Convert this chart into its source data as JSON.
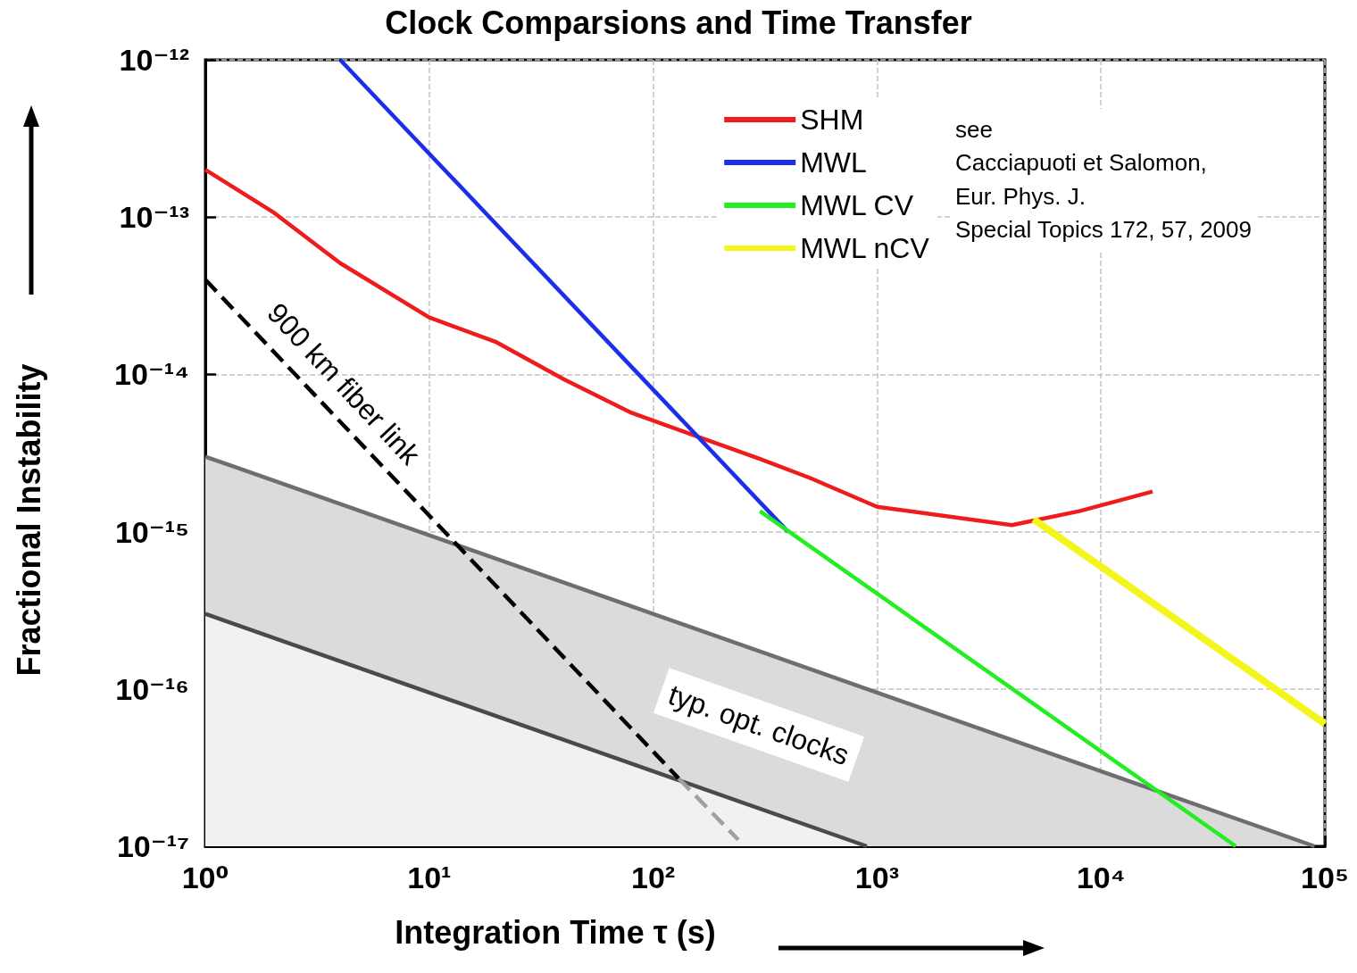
{
  "chart_data": {
    "type": "line",
    "title": "Clock Comparsions and Time Transfer",
    "xlabel": "Integration Time τ (s)",
    "ylabel": "Fractional Instability",
    "log": "xy",
    "grid": true,
    "legend": "top right",
    "marker": "none",
    "line_style": "solid",
    "xlim": [
      1,
      100000
    ],
    "xticks": [
      {
        "value": 1,
        "label": "10⁰"
      },
      {
        "value": 10,
        "label": "10¹"
      },
      {
        "value": 100,
        "label": "10²"
      },
      {
        "value": 1000,
        "label": "10³"
      },
      {
        "value": 10000,
        "label": "10⁴"
      },
      {
        "value": 100000,
        "label": "10⁵"
      }
    ],
    "ylim": [
      1e-17,
      1e-12
    ],
    "yticks": [
      {
        "value": 1e-17,
        "label": "10⁻¹⁷"
      },
      {
        "value": 1e-16,
        "label": "10⁻¹⁶"
      },
      {
        "value": 1e-15,
        "label": "10⁻¹⁵"
      },
      {
        "value": 1e-14,
        "label": "10⁻¹⁴"
      },
      {
        "value": 1e-13,
        "label": "10⁻¹³"
      },
      {
        "value": 1e-12,
        "label": "10⁻¹²"
      }
    ],
    "series": [
      {
        "type": "area",
        "color": "#6e6e6e",
        "x": [
          1,
          90000
        ],
        "values": [
          3e-15,
          1e-17
        ]
      },
      {
        "type": "area",
        "color": "#4a4a4a",
        "x": [
          1,
          900
        ],
        "values": [
          3e-16,
          1e-17
        ]
      },
      {
        "color": "#000000",
        "line_style": "dashed",
        "x": [
          1,
          130
        ],
        "values": [
          4e-14,
          2.7e-17
        ]
      },
      {
        "color": "#a0a0a0",
        "line_style": "dashed",
        "x": [
          130,
          240
        ],
        "values": [
          2.7e-17,
          1.1e-17
        ]
      },
      {
        "name": "SHM",
        "color": "#ee1c1c",
        "x": [
          1,
          2,
          4,
          10,
          20,
          40,
          80,
          160,
          300,
          500,
          1000,
          4000,
          8000,
          17000
        ],
        "values": [
          2e-13,
          1.08e-13,
          5.1e-14,
          2.3e-14,
          1.6e-14,
          9.3e-15,
          5.7e-15,
          4e-15,
          2.9e-15,
          2.2e-15,
          1.44e-15,
          1.1e-15,
          1.35e-15,
          1.8e-15
        ]
      },
      {
        "name": "MWL",
        "color": "#1c2ee8",
        "x": [
          4,
          400
        ],
        "values": [
          1e-12,
          1e-15
        ]
      },
      {
        "name": "MWL CV",
        "color": "#22ee22",
        "x": [
          300,
          40000
        ],
        "values": [
          1.35e-15,
          1e-17
        ]
      },
      {
        "name": "MWL nCV",
        "color": "#f5f51e",
        "x": [
          5000,
          100000
        ],
        "values": [
          1.2e-15,
          6e-17
        ]
      }
    ],
    "annotations": [
      "900 km fiber link",
      "typ. opt. clocks",
      "see\nCacciapuoti et Salomon,\nEur. Phys. J.\nSpecial Topics 172, 57, 2009"
    ]
  }
}
